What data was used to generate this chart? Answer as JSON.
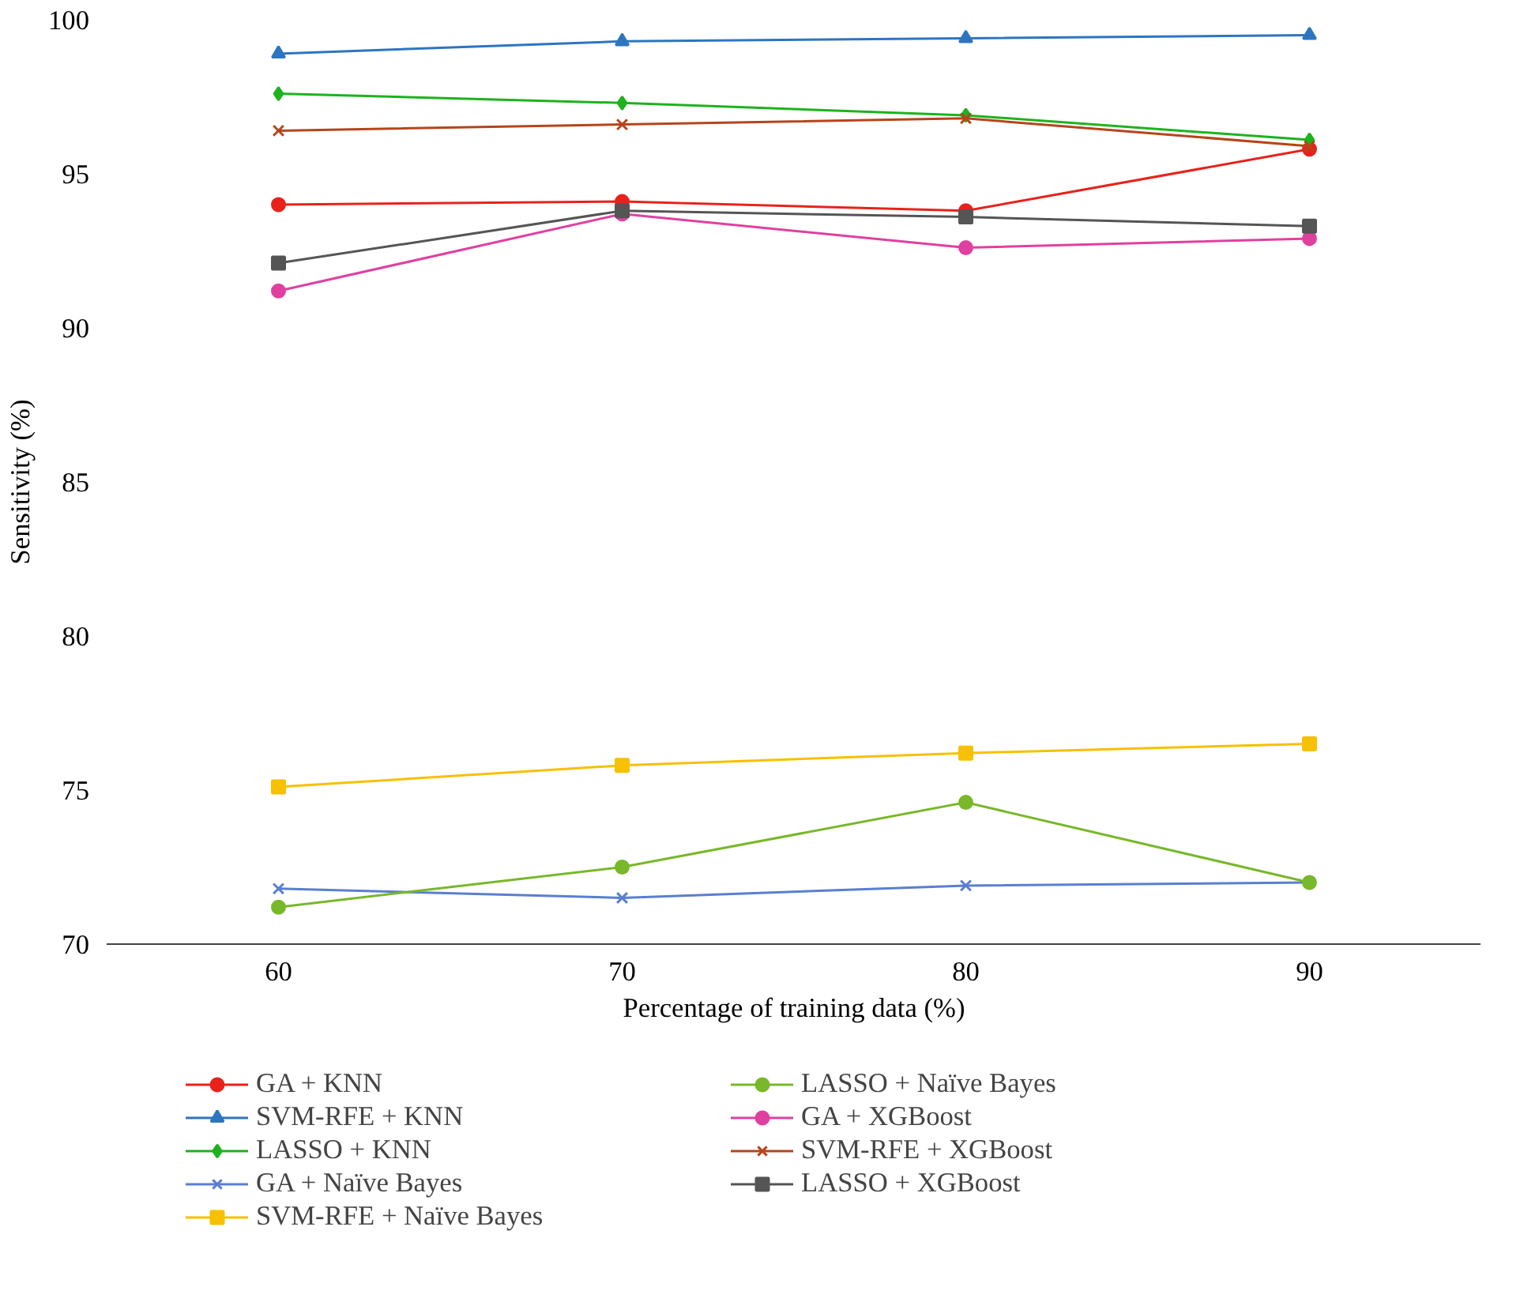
{
  "chart_data": {
    "type": "line",
    "xlabel": "Percentage of training data (%)",
    "ylabel": "Sensitivity (%)",
    "x": [
      60,
      70,
      80,
      90
    ],
    "xlim": [
      55,
      95
    ],
    "xticks": [
      60,
      70,
      80,
      90
    ],
    "ylim": [
      70,
      100
    ],
    "yticks": [
      70,
      75,
      80,
      85,
      90,
      95,
      100
    ],
    "grid": false,
    "legend": "bottom",
    "line_style": "solid",
    "series": [
      {
        "name": "GA + KNN",
        "color": "#e8221b",
        "marker": "circle",
        "values": [
          94.0,
          94.1,
          93.8,
          95.8
        ]
      },
      {
        "name": "SVM-RFE + KNN",
        "color": "#2e75c0",
        "marker": "triangle",
        "values": [
          98.9,
          99.3,
          99.4,
          99.5
        ]
      },
      {
        "name": "LASSO + KNN",
        "color": "#1db31d",
        "marker": "diamond",
        "values": [
          97.6,
          97.3,
          96.9,
          96.1
        ]
      },
      {
        "name": "GA + Naïve Bayes",
        "color": "#5a7fd0",
        "marker": "cross",
        "values": [
          71.8,
          71.5,
          71.9,
          72.0
        ]
      },
      {
        "name": "SVM-RFE + Naïve Bayes",
        "color": "#f7c000",
        "marker": "square",
        "values": [
          75.1,
          75.8,
          76.2,
          76.5
        ]
      },
      {
        "name": "LASSO + Naïve Bayes",
        "color": "#78b82a",
        "marker": "circle",
        "values": [
          71.2,
          72.5,
          74.6,
          72.0
        ]
      },
      {
        "name": "GA + XGBoost",
        "color": "#e040a0",
        "marker": "circle",
        "values": [
          91.2,
          93.7,
          92.6,
          92.9
        ]
      },
      {
        "name": "SVM-RFE + XGBoost",
        "color": "#b5451b",
        "marker": "cross",
        "values": [
          96.4,
          96.6,
          96.8,
          95.9
        ]
      },
      {
        "name": "LASSO + XGBoost",
        "color": "#555555",
        "marker": "square",
        "values": [
          92.1,
          93.8,
          93.6,
          93.3
        ]
      }
    ]
  }
}
